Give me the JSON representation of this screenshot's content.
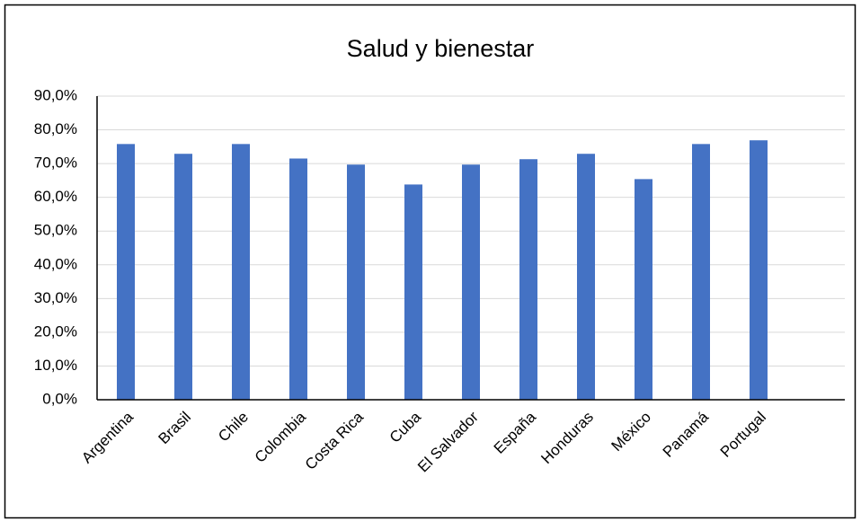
{
  "chart_data": {
    "type": "bar",
    "title": "Salud y bienestar",
    "categories": [
      "Argentina",
      "Brasil",
      "Chile",
      "Colombia",
      "Costa Rica",
      "Cuba",
      "El Salvador",
      "España",
      "Honduras",
      "México",
      "Panamá",
      "Portugal"
    ],
    "values": [
      75.8,
      72.9,
      75.8,
      71.5,
      69.7,
      63.8,
      69.7,
      71.3,
      72.9,
      65.4,
      75.8,
      76.9
    ],
    "color": "#4472c4",
    "ylim": [
      0,
      90
    ],
    "yticks": [
      {
        "value": 0,
        "label": "0,0%"
      },
      {
        "value": 10,
        "label": "10,0%"
      },
      {
        "value": 20,
        "label": "20,0%"
      },
      {
        "value": 30,
        "label": "30,0%"
      },
      {
        "value": 40,
        "label": "40,0%"
      },
      {
        "value": 50,
        "label": "50,0%"
      },
      {
        "value": 60,
        "label": "60,0%"
      },
      {
        "value": 70,
        "label": "70,0%"
      },
      {
        "value": 80,
        "label": "80,0%"
      },
      {
        "value": 90,
        "label": "90,0%"
      }
    ],
    "grid": true
  }
}
